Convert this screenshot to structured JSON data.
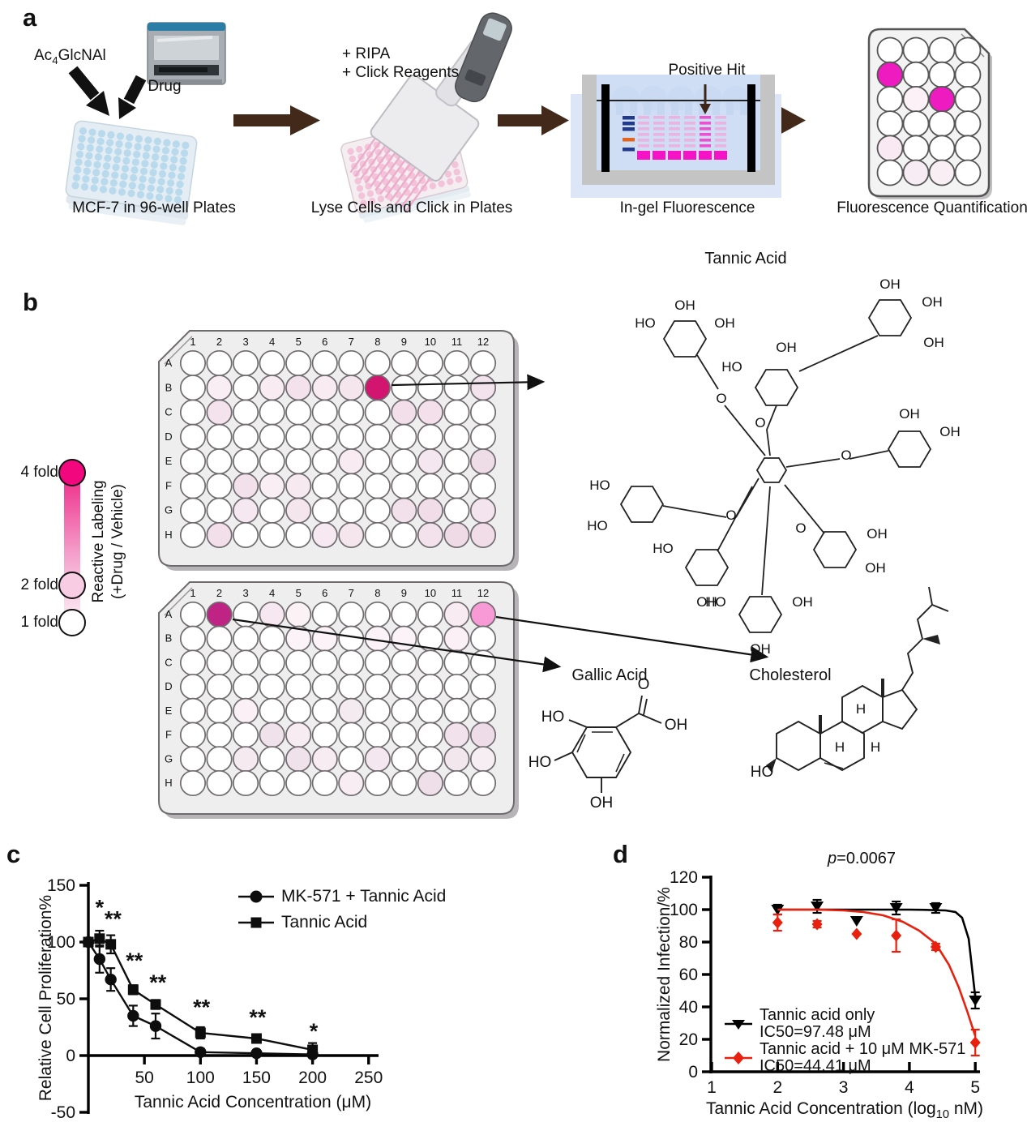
{
  "panel_labels": {
    "a": "a",
    "b": "b",
    "c": "c",
    "d": "d"
  },
  "colors": {
    "hit_strong": "#d2156f",
    "hit_purple": "#bf2383",
    "hit_pink": "#f79ad5",
    "scale_top": "#f2077f",
    "magenta_bright": "#ee1cc0",
    "arrow_brown": "#42291a",
    "red_series": "#e8210f",
    "black_series": "#0d0d0d"
  },
  "panel_a": {
    "reagent_parts": {
      "pre": "Ac",
      "sub": "4",
      "post": "GlcNAl"
    },
    "drug_label": "+ Drug",
    "ripa_line1": "+ RIPA",
    "ripa_line2": "+ Click Reagents",
    "positive_hit": "Positive Hit",
    "captions": [
      "MCF-7 in 96-well Plates",
      "Lyse Cells and Click in Plates",
      "In-gel Fluorescence",
      "Fluorescence Quantification"
    ],
    "quant_plate": {
      "rows": 6,
      "cols": 4,
      "wells": {
        "2-1": "#ee1cc0",
        "3-2": "#fbf1f6",
        "3-3": "#ee1cc0",
        "5-1": "#f9e9f2",
        "6-2": "#f7ecf3",
        "6-3": "#f9eef4"
      }
    }
  },
  "panel_b": {
    "scale": {
      "top": "4 fold",
      "mid": "2 fold",
      "bottom": "1 fold",
      "caption_line1": "Reactive Labeling",
      "caption_line2": "(+Drug / Vehicle)"
    },
    "col_labels": [
      "1",
      "2",
      "3",
      "4",
      "5",
      "6",
      "7",
      "8",
      "9",
      "10",
      "11",
      "12"
    ],
    "row_labels": [
      "A",
      "B",
      "C",
      "D",
      "E",
      "F",
      "G",
      "H"
    ],
    "plate_top": {
      "hit_well": "B8",
      "wells": {
        "B2": "#f9eef4",
        "B4": "#f8ecf2",
        "B5": "#f3e1ec",
        "B6": "#f8ebf2",
        "B7": "#f5e6ee",
        "B8": "#d2156f",
        "B12": "#f3e3ec",
        "C2": "#f4e2ec",
        "C9": "#f3dfe9",
        "C10": "#f3e0ea",
        "E7": "#f8ecf2",
        "E10": "#f5e7ef",
        "E12": "#eedce7",
        "F3": "#f2e0ea",
        "F4": "#f8eef3",
        "F5": "#f6e9f0",
        "G3": "#f6e8f0",
        "G5": "#f5e6ee",
        "G9": "#f2e0ea",
        "G10": "#f0dde8",
        "G12": "#f4e4ed",
        "H2": "#f2dfe9",
        "H6": "#f6e9f1",
        "H7": "#f5e6ee",
        "H10": "#f3e2eb",
        "H11": "#eedbe6",
        "H12": "#f0dde8"
      }
    },
    "plate_bottom": {
      "hit_well": "A2",
      "highlight_well": "A12",
      "wells": {
        "A2": "#bf2383",
        "A4": "#f7e7f0",
        "A5": "#fbf2f6",
        "A11": "#f8ebf2",
        "A12": "#f79ad5",
        "B5": "#fbf3f7",
        "B6": "#fbf3f7",
        "B8": "#fbf3f7",
        "B9": "#fbf3f7",
        "B11": "#faf0f5",
        "E3": "#faf0f5",
        "E7": "#f4ebf1",
        "F4": "#f0e2eb",
        "F5": "#f6ecf2",
        "F11": "#f1e2eb",
        "F12": "#eedde8",
        "G3": "#f5eaf0",
        "G5": "#efe2ea",
        "G6": "#f6ecf2",
        "G8": "#f4e7ef",
        "G11": "#f3e7ee",
        "G12": "#f7eef3",
        "H7": "#f7edf3",
        "H10": "#efdfe9"
      }
    }
  },
  "structures": {
    "tannic": {
      "title": "Tannic Acid",
      "ring_labels": [
        "OH",
        "HO",
        "OH",
        "OH",
        "OH",
        "OH",
        "HO",
        "OH",
        "HO",
        "HO",
        "OH",
        "OH",
        "OH",
        "OH",
        "HO",
        "OH",
        "HO",
        "OH",
        "OH"
      ],
      "o_labels": [
        "O",
        "O",
        "O",
        "O",
        "O"
      ]
    },
    "gallic": {
      "title": "Gallic Acid",
      "labels": [
        "HO",
        "HO",
        "OH",
        "O",
        "OH"
      ]
    },
    "cholesterol": {
      "title": "Cholesterol",
      "labels": [
        "HO",
        "H",
        "H",
        "H"
      ]
    }
  },
  "chart_data": [
    {
      "id": "c",
      "type": "line",
      "xlabel": "Tannic Acid Concentration (μM)",
      "ylabel": "Relative Cell Proliferation%",
      "xlim": [
        0,
        250
      ],
      "ylim": [
        -50,
        150
      ],
      "xticks": [
        50,
        100,
        150,
        200,
        250
      ],
      "yticks": [
        -50,
        0,
        50,
        100,
        150
      ],
      "legend_position": "top-right",
      "series": [
        {
          "name": "MK-571 + Tannic Acid",
          "marker": "circle",
          "color": "#0d0d0d",
          "x": [
            0,
            10,
            20,
            40,
            60,
            100,
            150,
            200
          ],
          "y": [
            100,
            85,
            67,
            35,
            26,
            3,
            2,
            1
          ],
          "err": [
            3,
            12,
            10,
            9,
            11,
            3,
            2,
            2
          ]
        },
        {
          "name": "Tannic Acid",
          "marker": "square",
          "color": "#0d0d0d",
          "x": [
            0,
            10,
            20,
            40,
            60,
            100,
            150,
            200
          ],
          "y": [
            100,
            103,
            98,
            58,
            45,
            20,
            15,
            5
          ],
          "err": [
            3,
            7,
            8,
            4,
            4,
            5,
            3,
            6
          ]
        }
      ],
      "annotations": [
        {
          "text": "*",
          "x": 10,
          "y": 124
        },
        {
          "text": "**",
          "x": 22,
          "y": 114
        },
        {
          "text": "**",
          "x": 41,
          "y": 77
        },
        {
          "text": "**",
          "x": 62,
          "y": 58
        },
        {
          "text": "**",
          "x": 101,
          "y": 36
        },
        {
          "text": "**",
          "x": 151,
          "y": 27
        },
        {
          "text": "*",
          "x": 201,
          "y": 15
        }
      ]
    },
    {
      "id": "d",
      "type": "scatter",
      "p_value": "p=0.0067",
      "p_parts": {
        "italic": "p",
        "rest": "=0.0067"
      },
      "xlabel": "Tannic Acid Concentration (log10 nM)",
      "xlabel_parts": {
        "pre": "Tannic Acid Concentration (log",
        "sub": "10",
        "post": " nM)"
      },
      "ylabel": "Normalized Infection/%",
      "xlim": [
        1,
        5
      ],
      "ylim": [
        0,
        120
      ],
      "xticks": [
        1,
        2,
        3,
        4,
        5
      ],
      "yticks": [
        0,
        20,
        40,
        60,
        80,
        100,
        120
      ],
      "legend_position": "bottom-left",
      "series": [
        {
          "name": "Tannic acid only",
          "ic50_label": "IC50=97.48 μM",
          "marker": "triangle-down",
          "color": "#000000",
          "x": [
            2,
            2.6,
            3.2,
            3.8,
            4.4,
            5
          ],
          "y": [
            100,
            102,
            93,
            101,
            101,
            44
          ],
          "err": [
            3,
            4,
            0,
            4,
            3,
            5
          ],
          "curve_x": [
            2,
            2.5,
            3,
            3.5,
            4,
            4.3,
            4.55,
            4.7,
            4.8,
            4.9,
            4.95,
            5
          ],
          "curve_y": [
            100,
            100,
            100,
            100,
            100,
            99.8,
            99.5,
            98.5,
            95,
            82,
            64,
            46
          ]
        },
        {
          "name": "Tannic acid + 10 μM MK-571",
          "ic50_label": "IC50=44.41 μM",
          "marker": "diamond",
          "color": "#e8210f",
          "x": [
            2,
            2.6,
            3.2,
            3.8,
            4.4,
            5
          ],
          "y": [
            92,
            91,
            85,
            84,
            77,
            18
          ],
          "err": [
            5,
            2,
            0,
            10,
            2,
            8
          ],
          "curve_x": [
            2,
            2.6,
            3,
            3.3,
            3.6,
            3.9,
            4.15,
            4.4,
            4.6,
            4.75,
            4.88,
            5
          ],
          "curve_y": [
            100,
            100,
            99.5,
            98.5,
            96.5,
            92.5,
            87,
            79,
            66,
            52,
            37,
            22
          ]
        }
      ]
    }
  ]
}
